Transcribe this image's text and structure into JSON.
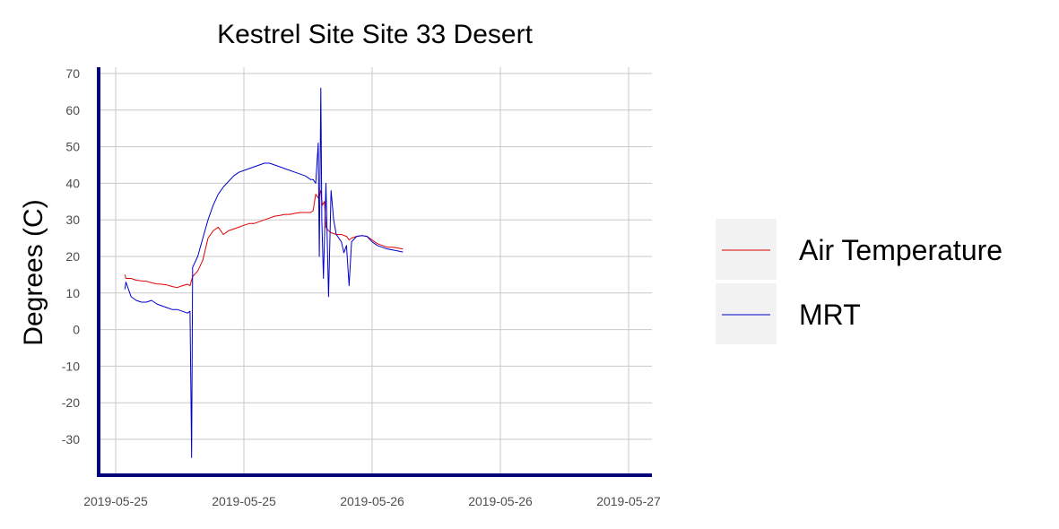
{
  "chart_data": {
    "type": "line",
    "title": "Kestrel Site Site 33 Desert",
    "xlabel": "",
    "ylabel": "Degrees (C)",
    "x_tick_labels": [
      "2019-05-25",
      "2019-05-25",
      "2019-05-26",
      "2019-05-26",
      "2019-05-27"
    ],
    "y_tick_labels": [
      "70",
      "60",
      "50",
      "40",
      "30",
      "20",
      "10",
      "0",
      "-10",
      "-20",
      "-30"
    ],
    "y_ticks": [
      70,
      60,
      50,
      40,
      30,
      20,
      10,
      0,
      -10,
      -20,
      -30
    ],
    "ylim": [
      -40,
      70
    ],
    "xlim": [
      0,
      1.05
    ],
    "x_tick_positions": [
      0,
      0.25,
      0.5,
      0.75,
      1.0
    ],
    "grid": true,
    "legend_position": "right",
    "series": [
      {
        "name": "Air Temperature",
        "color": "#e00000",
        "points": [
          [
            0.018,
            15
          ],
          [
            0.02,
            14
          ],
          [
            0.03,
            14
          ],
          [
            0.04,
            13.5
          ],
          [
            0.05,
            13.3
          ],
          [
            0.06,
            13.2
          ],
          [
            0.07,
            12.8
          ],
          [
            0.08,
            12.5
          ],
          [
            0.09,
            12.4
          ],
          [
            0.1,
            12.2
          ],
          [
            0.11,
            11.8
          ],
          [
            0.12,
            11.5
          ],
          [
            0.13,
            12
          ],
          [
            0.14,
            12.4
          ],
          [
            0.145,
            12
          ],
          [
            0.15,
            14.5
          ],
          [
            0.16,
            16
          ],
          [
            0.17,
            19
          ],
          [
            0.175,
            22
          ],
          [
            0.18,
            25
          ],
          [
            0.19,
            27
          ],
          [
            0.2,
            28
          ],
          [
            0.21,
            26
          ],
          [
            0.22,
            27
          ],
          [
            0.23,
            27.5
          ],
          [
            0.24,
            28
          ],
          [
            0.25,
            28.5
          ],
          [
            0.26,
            29
          ],
          [
            0.27,
            29
          ],
          [
            0.28,
            29.5
          ],
          [
            0.29,
            30
          ],
          [
            0.3,
            30.5
          ],
          [
            0.31,
            31
          ],
          [
            0.32,
            31.2
          ],
          [
            0.33,
            31.5
          ],
          [
            0.34,
            31.5
          ],
          [
            0.35,
            31.8
          ],
          [
            0.36,
            32
          ],
          [
            0.37,
            32
          ],
          [
            0.38,
            32
          ],
          [
            0.385,
            32.5
          ],
          [
            0.39,
            37
          ],
          [
            0.395,
            36
          ],
          [
            0.4,
            38
          ],
          [
            0.403,
            34
          ],
          [
            0.407,
            35
          ],
          [
            0.41,
            28
          ],
          [
            0.415,
            27
          ],
          [
            0.42,
            26.5
          ],
          [
            0.43,
            26
          ],
          [
            0.44,
            26
          ],
          [
            0.45,
            25.5
          ],
          [
            0.455,
            24.5
          ],
          [
            0.46,
            25
          ],
          [
            0.47,
            25.5
          ],
          [
            0.48,
            25.7
          ],
          [
            0.49,
            25.5
          ],
          [
            0.5,
            24.5
          ],
          [
            0.51,
            23.5
          ],
          [
            0.52,
            23
          ],
          [
            0.53,
            22.5
          ],
          [
            0.54,
            22.5
          ],
          [
            0.55,
            22.3
          ],
          [
            0.56,
            22
          ]
        ]
      },
      {
        "name": "MRT",
        "color": "#0000cc",
        "points": [
          [
            0.018,
            11
          ],
          [
            0.02,
            13
          ],
          [
            0.03,
            9
          ],
          [
            0.04,
            8
          ],
          [
            0.05,
            7.5
          ],
          [
            0.06,
            7.5
          ],
          [
            0.07,
            8
          ],
          [
            0.08,
            7
          ],
          [
            0.09,
            6.5
          ],
          [
            0.1,
            6
          ],
          [
            0.11,
            5.5
          ],
          [
            0.12,
            5.5
          ],
          [
            0.13,
            5
          ],
          [
            0.14,
            4.5
          ],
          [
            0.145,
            5
          ],
          [
            0.148,
            -35
          ],
          [
            0.15,
            17
          ],
          [
            0.16,
            20
          ],
          [
            0.17,
            25
          ],
          [
            0.18,
            30
          ],
          [
            0.19,
            34
          ],
          [
            0.2,
            37
          ],
          [
            0.21,
            39
          ],
          [
            0.22,
            40.5
          ],
          [
            0.23,
            42
          ],
          [
            0.24,
            43
          ],
          [
            0.25,
            43.5
          ],
          [
            0.26,
            44
          ],
          [
            0.27,
            44.5
          ],
          [
            0.28,
            45
          ],
          [
            0.29,
            45.5
          ],
          [
            0.3,
            45.5
          ],
          [
            0.31,
            45
          ],
          [
            0.32,
            44.5
          ],
          [
            0.33,
            44
          ],
          [
            0.34,
            43.5
          ],
          [
            0.35,
            43
          ],
          [
            0.36,
            42.5
          ],
          [
            0.37,
            42
          ],
          [
            0.38,
            41
          ],
          [
            0.385,
            41
          ],
          [
            0.39,
            40
          ],
          [
            0.395,
            51
          ],
          [
            0.397,
            20
          ],
          [
            0.4,
            66
          ],
          [
            0.402,
            30
          ],
          [
            0.405,
            14
          ],
          [
            0.41,
            40
          ],
          [
            0.415,
            9
          ],
          [
            0.42,
            38
          ],
          [
            0.425,
            30
          ],
          [
            0.43,
            26
          ],
          [
            0.44,
            24
          ],
          [
            0.445,
            21
          ],
          [
            0.45,
            23
          ],
          [
            0.455,
            12
          ],
          [
            0.46,
            24
          ],
          [
            0.47,
            25.5
          ],
          [
            0.48,
            25.7
          ],
          [
            0.49,
            25.5
          ],
          [
            0.5,
            24
          ],
          [
            0.51,
            23
          ],
          [
            0.52,
            22.5
          ],
          [
            0.53,
            22
          ],
          [
            0.54,
            21.8
          ],
          [
            0.55,
            21.5
          ],
          [
            0.56,
            21.2
          ]
        ]
      }
    ]
  }
}
